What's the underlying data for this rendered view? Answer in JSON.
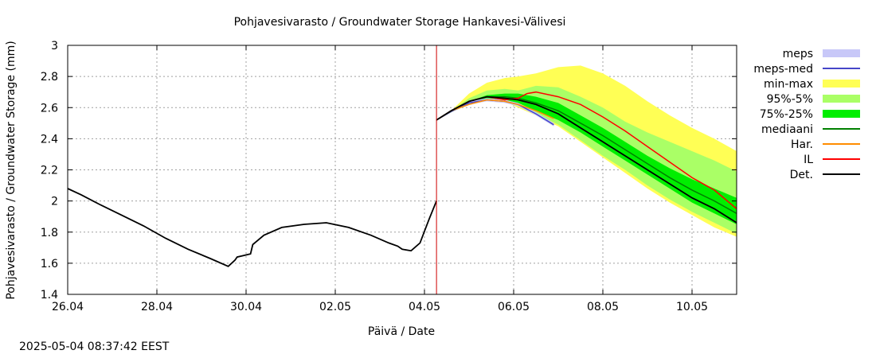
{
  "chart_data": {
    "type": "line",
    "title": "Pohjavesivarasto / Groundwater Storage   Hankavesi-Välivesi",
    "xlabel": "Päivä / Date",
    "ylabel": "Pohjavesivarasto / Groundwater Storage (mm)",
    "ylim": [
      1.4,
      3.0
    ],
    "yticks": [
      "1.4",
      "1.6",
      "1.8",
      "2",
      "2.2",
      "2.4",
      "2.6",
      "2.8",
      "3"
    ],
    "xlim_days": [
      0,
      15
    ],
    "xtick_labels": [
      "26.04",
      "28.04",
      "30.04",
      "02.05",
      "04.05",
      "06.05",
      "08.05",
      "10.05"
    ],
    "grid": true,
    "legend_position": "right",
    "forecast_start_day": 8.27,
    "legend": [
      {
        "label": "meps",
        "color": "#c8c8f8",
        "kind": "band"
      },
      {
        "label": "meps-med",
        "color": "#4646c8",
        "kind": "line"
      },
      {
        "label": "min-max",
        "color": "#ffff55",
        "kind": "band"
      },
      {
        "label": "95%-5%",
        "color": "#aaff66",
        "kind": "band"
      },
      {
        "label": "75%-25%",
        "color": "#00ee00",
        "kind": "band"
      },
      {
        "label": "mediaani",
        "color": "#008000",
        "kind": "line"
      },
      {
        "label": "Har.",
        "color": "#ff8c00",
        "kind": "line"
      },
      {
        "label": "IL",
        "color": "#ff0000",
        "kind": "line"
      },
      {
        "label": "Det.",
        "color": "#000000",
        "kind": "line"
      }
    ],
    "observed": {
      "x": [
        0,
        0.3,
        0.7,
        1.2,
        1.7,
        2.2,
        2.7,
        3.2,
        3.6,
        3.75,
        3.8,
        3.95,
        4.1,
        4.15,
        4.4,
        4.8,
        5.3,
        5.8,
        6.3,
        6.8,
        7.2,
        7.4,
        7.5,
        7.7,
        7.9,
        8.1,
        8.27
      ],
      "y": [
        2.08,
        2.04,
        1.98,
        1.91,
        1.84,
        1.76,
        1.69,
        1.63,
        1.58,
        1.62,
        1.64,
        1.65,
        1.66,
        1.72,
        1.78,
        1.83,
        1.85,
        1.86,
        1.83,
        1.78,
        1.73,
        1.71,
        1.69,
        1.68,
        1.73,
        1.88,
        2.0
      ]
    },
    "x_extra_note": "",
    "forecast": {
      "x": [
        8.27,
        8.6,
        9.0,
        9.4,
        9.8,
        10.1,
        10.5,
        11.0,
        11.5,
        12.0,
        12.5,
        13.0,
        13.5,
        14.0,
        14.5,
        15.0
      ],
      "minmax_upper": [
        2.52,
        2.58,
        2.69,
        2.76,
        2.79,
        2.8,
        2.82,
        2.86,
        2.87,
        2.82,
        2.74,
        2.64,
        2.55,
        2.47,
        2.4,
        2.32
      ],
      "minmax_lower": [
        2.52,
        2.57,
        2.62,
        2.65,
        2.64,
        2.6,
        2.55,
        2.48,
        2.38,
        2.28,
        2.18,
        2.08,
        1.99,
        1.91,
        1.83,
        1.77
      ],
      "p95_upper": [
        2.52,
        2.58,
        2.66,
        2.71,
        2.72,
        2.71,
        2.74,
        2.73,
        2.67,
        2.6,
        2.51,
        2.44,
        2.38,
        2.32,
        2.26,
        2.19
      ],
      "p5_lower": [
        2.52,
        2.57,
        2.62,
        2.65,
        2.64,
        2.61,
        2.56,
        2.49,
        2.39,
        2.29,
        2.2,
        2.1,
        2.01,
        1.93,
        1.86,
        1.79
      ],
      "p75_upper": [
        2.52,
        2.58,
        2.64,
        2.68,
        2.69,
        2.69,
        2.67,
        2.63,
        2.55,
        2.47,
        2.38,
        2.29,
        2.21,
        2.14,
        2.08,
        2.02
      ],
      "p25_lower": [
        2.52,
        2.57,
        2.63,
        2.66,
        2.65,
        2.63,
        2.58,
        2.52,
        2.44,
        2.35,
        2.26,
        2.17,
        2.08,
        1.99,
        1.92,
        1.85
      ],
      "median": [
        2.52,
        2.58,
        2.64,
        2.67,
        2.67,
        2.66,
        2.63,
        2.58,
        2.5,
        2.42,
        2.33,
        2.24,
        2.15,
        2.07,
        2.0,
        1.92
      ],
      "det": [
        2.52,
        2.58,
        2.64,
        2.67,
        2.66,
        2.65,
        2.62,
        2.56,
        2.47,
        2.38,
        2.29,
        2.2,
        2.11,
        2.02,
        1.95,
        1.86
      ],
      "il_x": [
        8.27,
        8.6,
        9.0,
        9.4,
        9.8,
        10.1,
        10.3,
        10.5,
        11.0,
        11.5,
        12.0,
        12.5,
        13.0,
        13.5,
        14.0,
        14.5,
        15.0
      ],
      "il": [
        2.52,
        2.58,
        2.64,
        2.67,
        2.65,
        2.66,
        2.69,
        2.7,
        2.67,
        2.62,
        2.54,
        2.45,
        2.35,
        2.25,
        2.15,
        2.07,
        1.95
      ],
      "har_x": [
        8.27,
        8.6,
        9.0,
        9.4,
        9.8,
        10.1,
        10.5,
        10.9
      ],
      "har": [
        2.52,
        2.58,
        2.62,
        2.65,
        2.64,
        2.62,
        2.58,
        2.53
      ],
      "meps_x": [
        8.27,
        8.6,
        9.0,
        9.4,
        9.8,
        10.1,
        10.5,
        10.9
      ],
      "meps_upper": [
        2.52,
        2.58,
        2.64,
        2.66,
        2.65,
        2.63,
        2.57,
        2.5
      ],
      "meps_lower": [
        2.52,
        2.57,
        2.62,
        2.64,
        2.63,
        2.61,
        2.55,
        2.48
      ],
      "meps_med": [
        2.52,
        2.575,
        2.63,
        2.65,
        2.64,
        2.62,
        2.56,
        2.49
      ]
    }
  },
  "footer": {
    "timestamp": "2025-05-04 08:37:42 EEST"
  }
}
